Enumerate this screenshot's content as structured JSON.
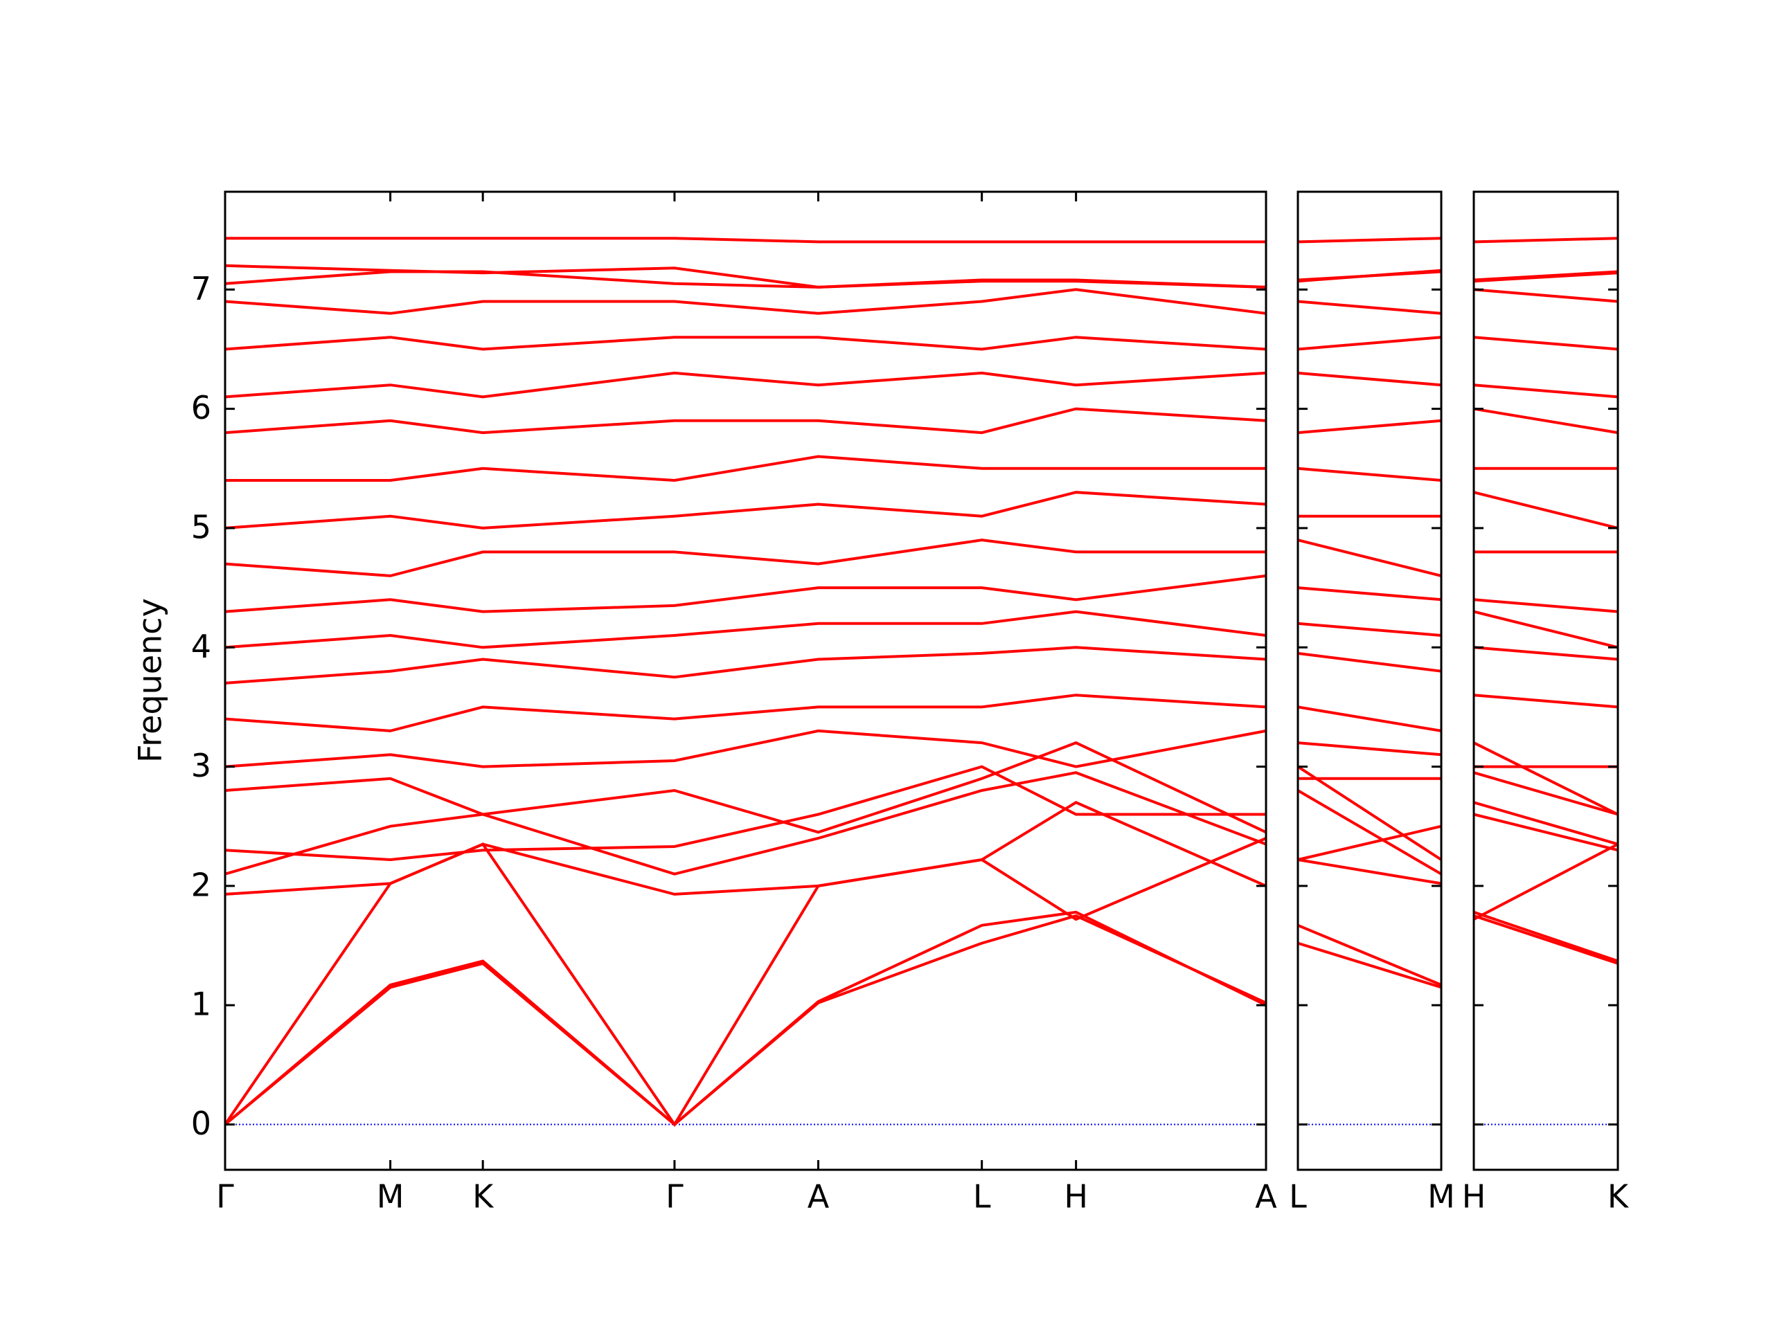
{
  "chart_data": {
    "type": "line",
    "y_label": "Frequency",
    "ylim": [
      -0.38,
      7.82
    ],
    "yticks": [
      0,
      1,
      2,
      3,
      4,
      5,
      6,
      7
    ],
    "color": "#ff0000",
    "zero_line": {
      "value": 0,
      "color": "#0000ff"
    },
    "panels": [
      {
        "xlim": [
          0,
          6.3
        ],
        "xticks": [
          {
            "value": 0,
            "label": "Γ"
          },
          {
            "value": 1,
            "label": "M"
          },
          {
            "value": 1.56,
            "label": "K"
          },
          {
            "value": 2.72,
            "label": "Γ"
          },
          {
            "value": 3.59,
            "label": "A"
          },
          {
            "value": 4.58,
            "label": "L"
          },
          {
            "value": 5.15,
            "label": "H"
          },
          {
            "value": 6.3,
            "label": "A"
          }
        ],
        "series": [
          {
            "values": [
              0,
              1.15,
              1.35,
              0,
              1.02,
              1.52,
              1.75,
              1.02
            ]
          },
          {
            "values": [
              0,
              1.17,
              1.37,
              0,
              1.03,
              1.67,
              1.78,
              1.0
            ]
          },
          {
            "values": [
              0,
              2.02,
              2.35,
              0,
              2.0,
              2.22,
              1.72,
              2.4
            ]
          },
          {
            "values": [
              1.93,
              2.02,
              2.35,
              1.93,
              2.0,
              2.22,
              2.7,
              2.0
            ]
          },
          {
            "values": [
              2.1,
              2.5,
              2.6,
              2.1,
              2.4,
              2.8,
              2.95,
              2.35
            ]
          },
          {
            "values": [
              2.3,
              2.22,
              2.3,
              2.33,
              2.6,
              3.0,
              2.6,
              2.6
            ]
          },
          {
            "values": [
              2.8,
              2.9,
              2.6,
              2.8,
              2.45,
              2.9,
              3.2,
              2.45
            ]
          },
          {
            "values": [
              3.0,
              3.1,
              3.0,
              3.05,
              3.3,
              3.2,
              3.0,
              3.3
            ]
          },
          {
            "values": [
              3.4,
              3.3,
              3.5,
              3.4,
              3.5,
              3.5,
              3.6,
              3.5
            ]
          },
          {
            "values": [
              3.7,
              3.8,
              3.9,
              3.75,
              3.9,
              3.95,
              4.0,
              3.9
            ]
          },
          {
            "values": [
              4.0,
              4.1,
              4.0,
              4.1,
              4.2,
              4.2,
              4.3,
              4.1
            ]
          },
          {
            "values": [
              4.3,
              4.4,
              4.3,
              4.35,
              4.5,
              4.5,
              4.4,
              4.6
            ]
          },
          {
            "values": [
              4.7,
              4.6,
              4.8,
              4.8,
              4.7,
              4.9,
              4.8,
              4.8
            ]
          },
          {
            "values": [
              5.0,
              5.1,
              5.0,
              5.1,
              5.2,
              5.1,
              5.3,
              5.2
            ]
          },
          {
            "values": [
              5.4,
              5.4,
              5.5,
              5.4,
              5.6,
              5.5,
              5.5,
              5.5
            ]
          },
          {
            "values": [
              5.8,
              5.9,
              5.8,
              5.9,
              5.9,
              5.8,
              6.0,
              5.9
            ]
          },
          {
            "values": [
              6.1,
              6.2,
              6.1,
              6.3,
              6.2,
              6.3,
              6.2,
              6.3
            ]
          },
          {
            "values": [
              6.5,
              6.6,
              6.5,
              6.6,
              6.6,
              6.5,
              6.6,
              6.5
            ]
          },
          {
            "values": [
              6.9,
              6.8,
              6.9,
              6.9,
              6.8,
              6.9,
              7.0,
              6.8
            ]
          },
          {
            "values": [
              7.05,
              7.15,
              7.15,
              7.05,
              7.02,
              7.08,
              7.08,
              7.02
            ]
          },
          {
            "values": [
              7.2,
              7.16,
              7.14,
              7.18,
              7.02,
              7.07,
              7.07,
              7.02
            ]
          },
          {
            "values": [
              7.43,
              7.43,
              7.43,
              7.43,
              7.4,
              7.4,
              7.4,
              7.4
            ]
          }
        ]
      },
      {
        "xlim": [
          0,
          0.87
        ],
        "xticks": [
          {
            "value": 0,
            "label": "L"
          },
          {
            "value": 0.87,
            "label": "M"
          }
        ],
        "series": [
          {
            "values": [
              1.52,
              1.15
            ]
          },
          {
            "values": [
              1.67,
              1.17
            ]
          },
          {
            "values": [
              2.22,
              2.02
            ]
          },
          {
            "values": [
              2.22,
              2.5
            ]
          },
          {
            "values": [
              2.8,
              2.1
            ]
          },
          {
            "values": [
              3.0,
              2.22
            ]
          },
          {
            "values": [
              2.9,
              2.9
            ]
          },
          {
            "values": [
              3.2,
              3.1
            ]
          },
          {
            "values": [
              3.5,
              3.3
            ]
          },
          {
            "values": [
              3.95,
              3.8
            ]
          },
          {
            "values": [
              4.2,
              4.1
            ]
          },
          {
            "values": [
              4.5,
              4.4
            ]
          },
          {
            "values": [
              4.9,
              4.6
            ]
          },
          {
            "values": [
              5.1,
              5.1
            ]
          },
          {
            "values": [
              5.5,
              5.4
            ]
          },
          {
            "values": [
              5.8,
              5.9
            ]
          },
          {
            "values": [
              6.3,
              6.2
            ]
          },
          {
            "values": [
              6.5,
              6.6
            ]
          },
          {
            "values": [
              6.9,
              6.8
            ]
          },
          {
            "values": [
              7.08,
              7.15
            ]
          },
          {
            "values": [
              7.07,
              7.16
            ]
          },
          {
            "values": [
              7.4,
              7.43
            ]
          }
        ]
      },
      {
        "xlim": [
          0,
          0.875
        ],
        "xticks": [
          {
            "value": 0,
            "label": "H"
          },
          {
            "value": 0.875,
            "label": "K"
          }
        ],
        "series": [
          {
            "values": [
              1.75,
              1.35
            ]
          },
          {
            "values": [
              1.78,
              1.37
            ]
          },
          {
            "values": [
              1.72,
              2.35
            ]
          },
          {
            "values": [
              2.7,
              2.35
            ]
          },
          {
            "values": [
              2.95,
              2.6
            ]
          },
          {
            "values": [
              2.6,
              2.3
            ]
          },
          {
            "values": [
              3.2,
              2.6
            ]
          },
          {
            "values": [
              3.0,
              3.0
            ]
          },
          {
            "values": [
              3.6,
              3.5
            ]
          },
          {
            "values": [
              4.0,
              3.9
            ]
          },
          {
            "values": [
              4.3,
              4.0
            ]
          },
          {
            "values": [
              4.4,
              4.3
            ]
          },
          {
            "values": [
              4.8,
              4.8
            ]
          },
          {
            "values": [
              5.3,
              5.0
            ]
          },
          {
            "values": [
              5.5,
              5.5
            ]
          },
          {
            "values": [
              6.0,
              5.8
            ]
          },
          {
            "values": [
              6.2,
              6.1
            ]
          },
          {
            "values": [
              6.6,
              6.5
            ]
          },
          {
            "values": [
              7.0,
              6.9
            ]
          },
          {
            "values": [
              7.08,
              7.15
            ]
          },
          {
            "values": [
              7.07,
              7.14
            ]
          },
          {
            "values": [
              7.4,
              7.43
            ]
          }
        ]
      }
    ]
  }
}
